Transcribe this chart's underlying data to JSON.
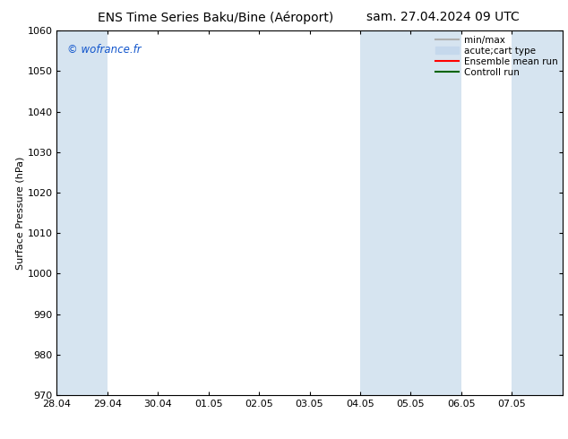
{
  "title_left": "ENS Time Series Baku/Bine (Aéroport)",
  "title_right": "sam. 27.04.2024 09 UTC",
  "ylabel": "Surface Pressure (hPa)",
  "ylim": [
    970,
    1060
  ],
  "yticks": [
    970,
    980,
    990,
    1000,
    1010,
    1020,
    1030,
    1040,
    1050,
    1060
  ],
  "xtick_labels": [
    "28.04",
    "29.04",
    "30.04",
    "01.05",
    "02.05",
    "03.05",
    "04.05",
    "05.05",
    "06.05",
    "07.05"
  ],
  "background_color": "#ffffff",
  "plot_bg_color": "#ffffff",
  "shaded_bands": [
    {
      "x_start": 0,
      "x_end": 1,
      "color": "#d6e4f0"
    },
    {
      "x_start": 6,
      "x_end": 8,
      "color": "#d6e4f0"
    },
    {
      "x_start": 9,
      "x_end": 10,
      "color": "#d6e4f0"
    }
  ],
  "legend_entries": [
    {
      "label": "min/max",
      "color": "#b0b0b0",
      "style": "line"
    },
    {
      "label": "acute;cart type",
      "color": "#c5d8ec",
      "style": "fill"
    },
    {
      "label": "Ensemble mean run",
      "color": "#ff0000",
      "style": "line"
    },
    {
      "label": "Controll run",
      "color": "#006400",
      "style": "line"
    }
  ],
  "watermark": "© wofrance.fr",
  "watermark_color": "#1155cc",
  "title_fontsize": 10,
  "tick_fontsize": 8,
  "ylabel_fontsize": 8,
  "legend_fontsize": 7.5,
  "num_xticks": 10,
  "xlim": [
    0,
    10
  ]
}
